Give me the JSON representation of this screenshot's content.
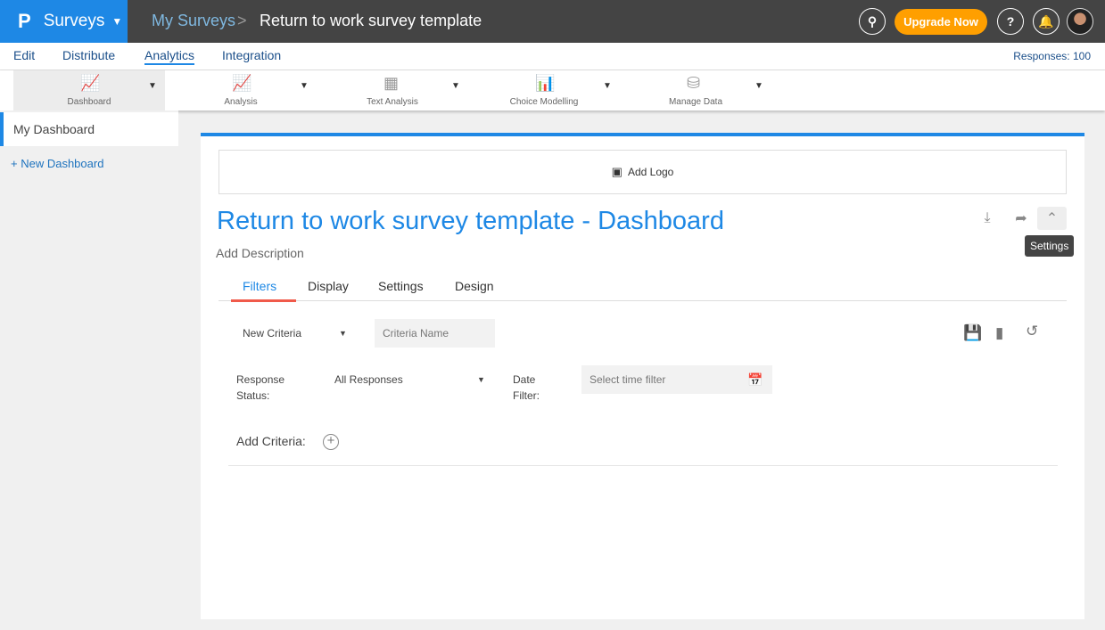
{
  "header": {
    "app": "Surveys",
    "breadcrumb_root": "My Surveys",
    "breadcrumb_sep": ">",
    "survey_title": "Return to work survey template",
    "upgrade": "Upgrade Now",
    "help": "?"
  },
  "menu": {
    "items": [
      "Edit",
      "Distribute",
      "Analytics",
      "Integration"
    ],
    "active": "Analytics",
    "responses": "Responses: 100"
  },
  "toolbar": {
    "items": [
      "Dashboard",
      "Analysis",
      "Text Analysis",
      "Choice Modelling",
      "Manage Data"
    ],
    "selected": "Dashboard"
  },
  "sidebar": {
    "my_dashboard": "My Dashboard",
    "new_dashboard": "+ New Dashboard"
  },
  "dashboard": {
    "add_logo": "Add Logo",
    "title": "Return to work survey template - Dashboard",
    "description": "Add Description",
    "tooltip": "Settings",
    "tabs": [
      "Filters",
      "Display",
      "Settings",
      "Design"
    ],
    "active_tab": "Filters"
  },
  "filters": {
    "criteria_select": "New Criteria",
    "criteria_name_placeholder": "Criteria Name",
    "response_status_label_1": "Response",
    "response_status_label_2": "Status:",
    "response_status_value": "All Responses",
    "date_filter_label_1": "Date",
    "date_filter_label_2": "Filter:",
    "date_placeholder": "Select time filter",
    "add_criteria": "Add Criteria:"
  },
  "colors": {
    "accent": "#1e88e5",
    "upgrade": "#ff9f00",
    "tab_underline": "#f05a4a"
  }
}
